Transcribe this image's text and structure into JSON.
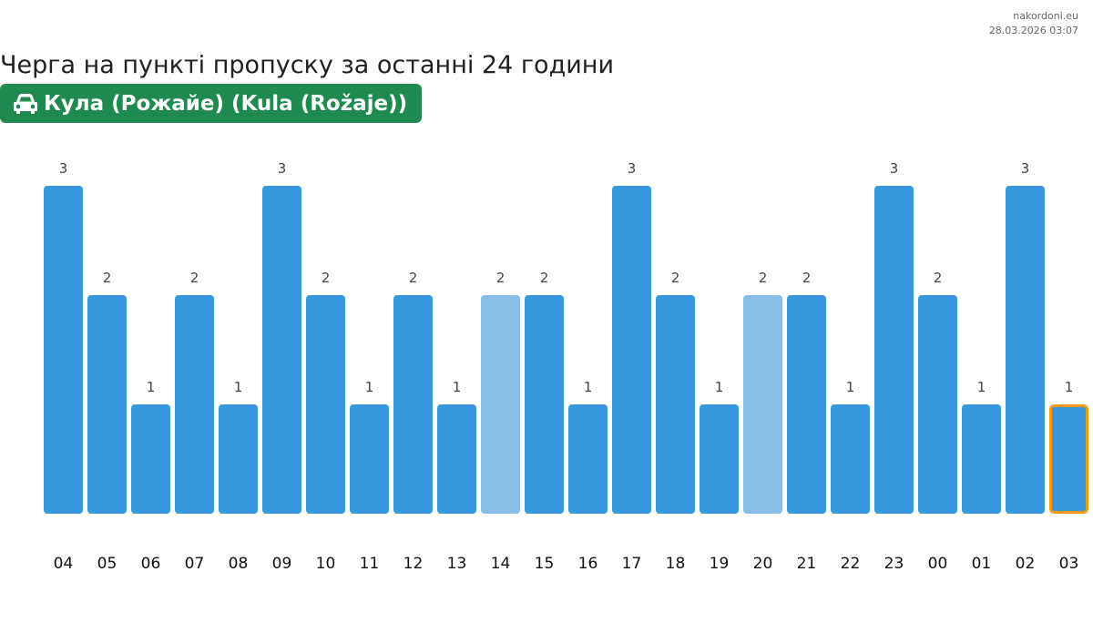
{
  "header": {
    "source": "nakordoni.eu",
    "timestamp": "28.03.2026 03:07",
    "title": "Черга на пункті пропуску за останні 24 години",
    "checkpoint": "Кула (Рожайе) (Kula (Rožaje))",
    "checkpoint_icon": "car-icon"
  },
  "colors": {
    "bar": "#3797db",
    "bar_light": "#85bfe8",
    "current_outline": "#f39c12",
    "badge": "#1e8a4f"
  },
  "chart_data": {
    "type": "bar",
    "title": "Черга на пункті пропуску за останні 24 години",
    "xlabel": "",
    "ylabel": "",
    "categories": [
      "04",
      "05",
      "06",
      "07",
      "08",
      "09",
      "10",
      "11",
      "12",
      "13",
      "14",
      "15",
      "16",
      "17",
      "18",
      "19",
      "20",
      "21",
      "22",
      "23",
      "00",
      "01",
      "02",
      "03"
    ],
    "values": [
      3,
      2,
      1,
      2,
      1,
      3,
      2,
      1,
      2,
      1,
      2,
      2,
      1,
      3,
      2,
      1,
      2,
      2,
      1,
      3,
      2,
      1,
      3,
      1
    ],
    "light_categories": [
      "14",
      "20"
    ],
    "highlighted_category": "03",
    "ylim": [
      0,
      3
    ],
    "grid": false
  }
}
